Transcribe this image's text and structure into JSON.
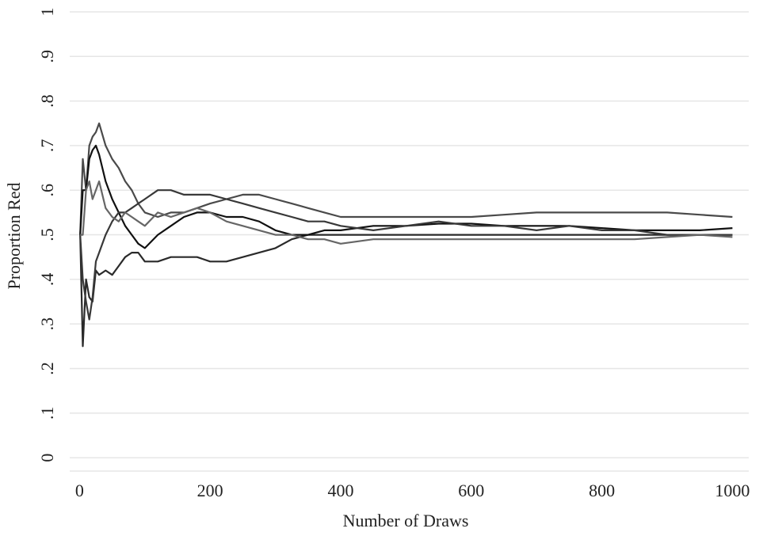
{
  "chart_data": {
    "type": "line",
    "x_label": "Number of Draws",
    "y_label": "Proportion Red",
    "x": [
      1,
      5,
      10,
      15,
      20,
      25,
      30,
      40,
      50,
      60,
      70,
      80,
      90,
      100,
      120,
      140,
      160,
      180,
      200,
      225,
      250,
      275,
      300,
      325,
      350,
      375,
      400,
      450,
      500,
      550,
      600,
      650,
      700,
      750,
      800,
      850,
      900,
      950,
      1000
    ],
    "series": [
      {
        "color": "#4a4a4a",
        "values": [
          0.5,
          0.67,
          0.6,
          0.7,
          0.72,
          0.73,
          0.75,
          0.7,
          0.67,
          0.65,
          0.62,
          0.6,
          0.57,
          0.55,
          0.54,
          0.55,
          0.55,
          0.56,
          0.57,
          0.58,
          0.59,
          0.59,
          0.58,
          0.57,
          0.56,
          0.55,
          0.54,
          0.54,
          0.54,
          0.54,
          0.54,
          0.545,
          0.55,
          0.55,
          0.55,
          0.55,
          0.55,
          0.545,
          0.54
        ]
      },
      {
        "color": "#2a2a2a",
        "values": [
          0.5,
          0.25,
          0.4,
          0.36,
          0.35,
          0.42,
          0.41,
          0.42,
          0.41,
          0.43,
          0.45,
          0.46,
          0.46,
          0.44,
          0.44,
          0.45,
          0.45,
          0.45,
          0.44,
          0.44,
          0.45,
          0.46,
          0.47,
          0.49,
          0.5,
          0.5,
          0.5,
          0.5,
          0.5,
          0.5,
          0.5,
          0.5,
          0.5,
          0.5,
          0.5,
          0.5,
          0.5,
          0.5,
          0.5
        ]
      },
      {
        "color": "#111111",
        "values": [
          0.5,
          0.6,
          0.6,
          0.67,
          0.69,
          0.7,
          0.68,
          0.62,
          0.58,
          0.55,
          0.52,
          0.5,
          0.48,
          0.47,
          0.5,
          0.52,
          0.54,
          0.55,
          0.55,
          0.54,
          0.54,
          0.53,
          0.51,
          0.5,
          0.5,
          0.51,
          0.51,
          0.52,
          0.52,
          0.525,
          0.525,
          0.52,
          0.52,
          0.52,
          0.515,
          0.51,
          0.51,
          0.51,
          0.515
        ]
      },
      {
        "color": "#383838",
        "values": [
          0.5,
          0.4,
          0.35,
          0.31,
          0.36,
          0.44,
          0.46,
          0.5,
          0.53,
          0.55,
          0.55,
          0.56,
          0.57,
          0.58,
          0.6,
          0.6,
          0.59,
          0.59,
          0.59,
          0.58,
          0.57,
          0.56,
          0.55,
          0.54,
          0.53,
          0.53,
          0.52,
          0.51,
          0.52,
          0.53,
          0.52,
          0.52,
          0.51,
          0.52,
          0.51,
          0.51,
          0.5,
          0.5,
          0.5
        ]
      },
      {
        "color": "#666666",
        "values": [
          0.5,
          0.5,
          0.6,
          0.62,
          0.58,
          0.6,
          0.62,
          0.56,
          0.54,
          0.53,
          0.55,
          0.54,
          0.53,
          0.52,
          0.55,
          0.54,
          0.55,
          0.56,
          0.55,
          0.53,
          0.52,
          0.51,
          0.5,
          0.5,
          0.49,
          0.49,
          0.48,
          0.49,
          0.49,
          0.49,
          0.49,
          0.49,
          0.49,
          0.49,
          0.49,
          0.49,
          0.495,
          0.5,
          0.495
        ]
      }
    ],
    "xlim": [
      -15,
      1025
    ],
    "xticks": [
      0,
      200,
      400,
      600,
      800,
      1000
    ],
    "ylim": [
      -0.03,
      1
    ],
    "yticks": [
      0,
      {
        "value": 0.1,
        "label": ".1"
      },
      {
        "value": 0.2,
        "label": ".2"
      },
      {
        "value": 0.3,
        "label": ".3"
      },
      {
        "value": 0.4,
        "label": ".4"
      },
      {
        "value": 0.5,
        "label": ".5"
      },
      {
        "value": 0.6,
        "label": ".6"
      },
      {
        "value": 0.7,
        "label": ".7"
      },
      {
        "value": 0.8,
        "label": ".8"
      },
      {
        "value": 0.9,
        "label": ".9"
      },
      1
    ],
    "grid": true
  }
}
